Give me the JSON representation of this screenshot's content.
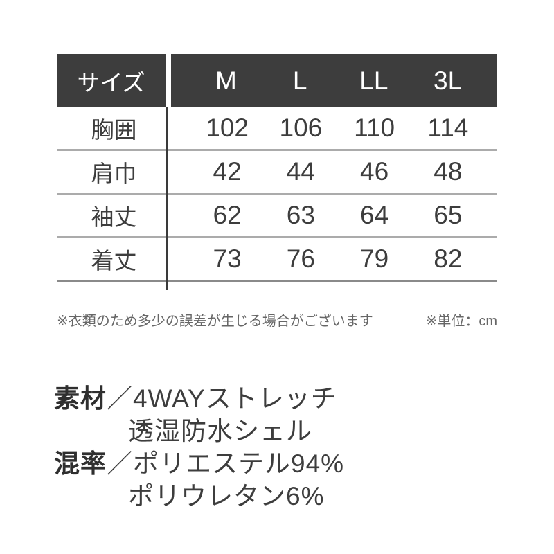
{
  "chart_data": {
    "type": "table",
    "title": "サイズ",
    "columns": [
      "M",
      "L",
      "LL",
      "3L"
    ],
    "row_labels": [
      "胸囲",
      "肩巾",
      "袖丈",
      "着丈"
    ],
    "rows": [
      [
        102,
        106,
        110,
        114
      ],
      [
        42,
        44,
        46,
        48
      ],
      [
        62,
        63,
        64,
        65
      ],
      [
        73,
        76,
        79,
        82
      ]
    ],
    "unit": "cm",
    "notes": [
      "※衣類のため多少の誤差が生じる場合がございます",
      "※単位：cm"
    ],
    "layout": "header row dark, first column labels, grid lines horizontal only"
  },
  "materials": {
    "rows": [
      {
        "label": "素材",
        "slash": "／",
        "text": "4WAYストレッチ"
      },
      {
        "text": "透湿防水シェル"
      },
      {
        "label": "混率",
        "slash": "／",
        "text": "ポリエステル94%"
      },
      {
        "text": "ポリウレタン6%"
      }
    ]
  },
  "colors": {
    "header_bg": "#3d3d3d",
    "header_text": "#ffffff",
    "body_text": "#3d3d3d",
    "row_separator": "#ababab",
    "bottom_border": "#8a8a8a",
    "column_divider": "#3a3a3a",
    "note_text": "#666666",
    "background": "#ffffff"
  }
}
